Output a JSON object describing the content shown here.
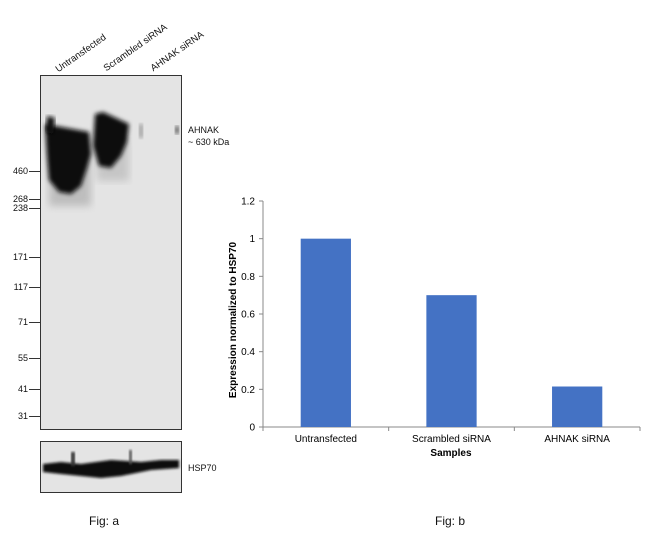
{
  "western_blot": {
    "lanes": [
      "Untransfected",
      "Scrambled siRNA",
      "AHNAK siRNA"
    ],
    "markers": [
      "460",
      "268",
      "238",
      "171",
      "117",
      "71",
      "55",
      "41",
      "31"
    ],
    "target_label": "AHNAK",
    "target_size": "~ 630 kDa",
    "loading_control": "HSP70",
    "panel_label": "Fig: a"
  },
  "chart_data": {
    "type": "bar",
    "categories": [
      "Untransfected",
      "Scrambled siRNA",
      "AHNAK siRNA"
    ],
    "values": [
      1.0,
      0.7,
      0.215
    ],
    "xlabel": "Samples",
    "ylabel": "Expression normalized to HSP70",
    "ylim": [
      0,
      1.2
    ],
    "yticks": [
      "0",
      "0.2",
      "0.4",
      "0.6",
      "0.8",
      "1",
      "1.2"
    ],
    "bar_color": "#4472c4",
    "panel_label": "Fig: b"
  }
}
